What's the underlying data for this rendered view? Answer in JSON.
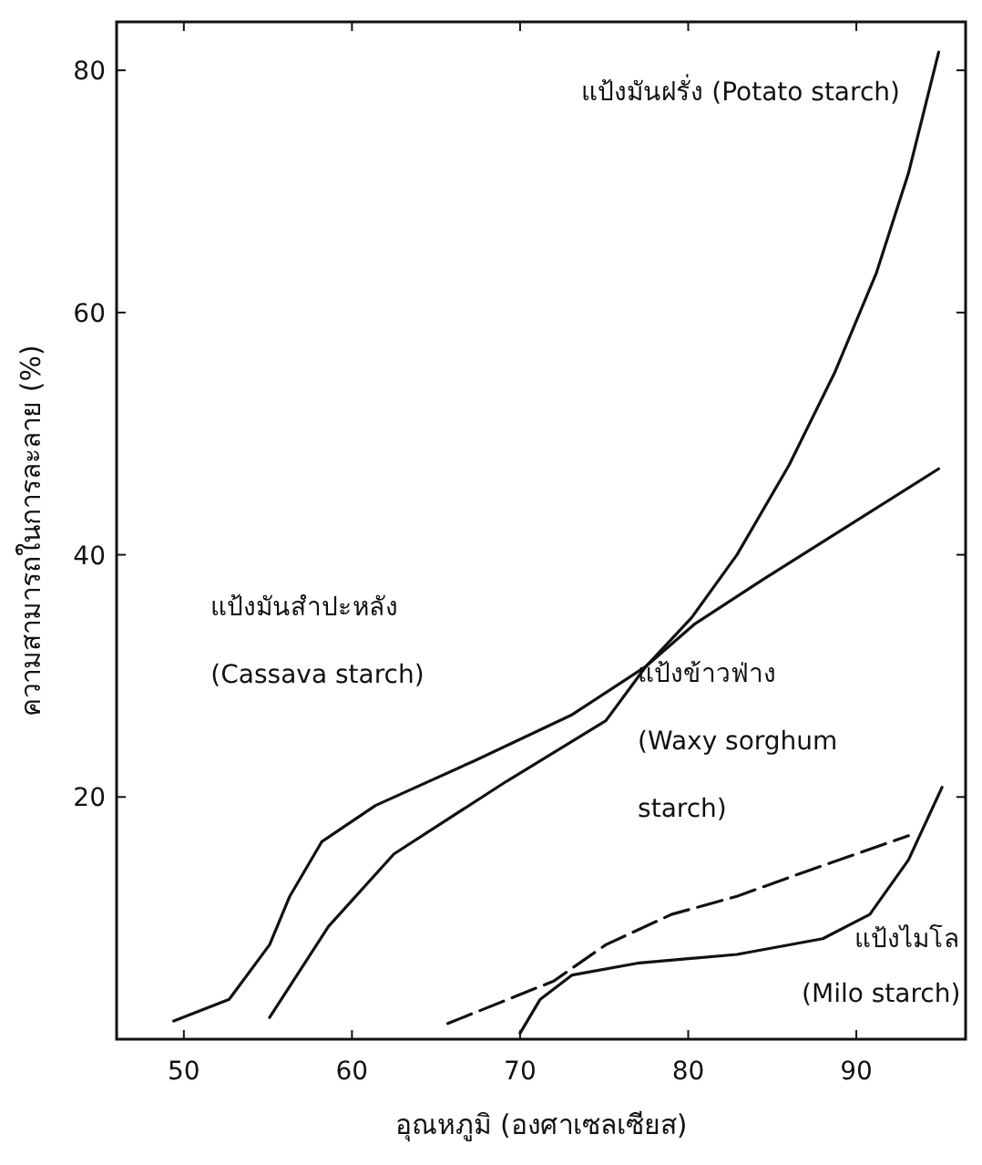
{
  "chart_data": {
    "type": "line",
    "xlabel": "อุณหภูมิ (องศาเซลเซียส)",
    "ylabel": "ความสามารถในการละลาย (%)",
    "xlim": [
      46,
      96.5
    ],
    "ylim": [
      0,
      84
    ],
    "xticks": [
      50,
      60,
      70,
      80,
      90
    ],
    "yticks": [
      20,
      40,
      60,
      80
    ],
    "grid": false,
    "marker": "none",
    "series": [
      {
        "name": "แป้งมันฝรั่ง (Potato starch)",
        "color": "#111111",
        "line_style": "solid",
        "x": [
          55.1,
          58.6,
          62.5,
          69.2,
          75.1,
          77.5,
          80.2,
          82.9,
          86.0,
          88.7,
          91.2,
          93.1,
          94.9
        ],
        "values": [
          1.8,
          9.3,
          15.3,
          21.3,
          26.3,
          30.8,
          34.8,
          40,
          47.4,
          55,
          63.3,
          71.5,
          81.5
        ]
      },
      {
        "name": "แป้งมันสำปะหลัง\n(Cassava starch)",
        "color": "#111111",
        "line_style": "solid",
        "x": [
          49.4,
          52.7,
          55.1,
          56.3,
          58.2,
          61.4,
          67.3,
          73.1,
          77.5,
          80.4,
          84.5,
          94.9
        ],
        "values": [
          1.5,
          3.3,
          7.8,
          11.8,
          16.3,
          19.3,
          23,
          26.8,
          30.8,
          34.3,
          38,
          47.1
        ]
      },
      {
        "name": "แป้งข้าวฟ่าง\n(Waxy sorghum\nstarch)",
        "color": "#111111",
        "line_style": "dashed",
        "x": [
          65.7,
          72,
          75.1,
          79,
          82.9,
          86.9,
          93.1
        ],
        "values": [
          1.3,
          4.8,
          7.8,
          10.3,
          11.8,
          13.8,
          16.8
        ]
      },
      {
        "name": "แป้งไมโล\n(Milo starch)",
        "color": "#111111",
        "line_style": "solid",
        "x": [
          70,
          71.2,
          73.1,
          77.1,
          82.9,
          88,
          90.8,
          93.1,
          95.1
        ],
        "values": [
          0.5,
          3.3,
          5.3,
          6.3,
          7,
          8.3,
          10.3,
          14.8,
          20.8
        ]
      }
    ]
  }
}
